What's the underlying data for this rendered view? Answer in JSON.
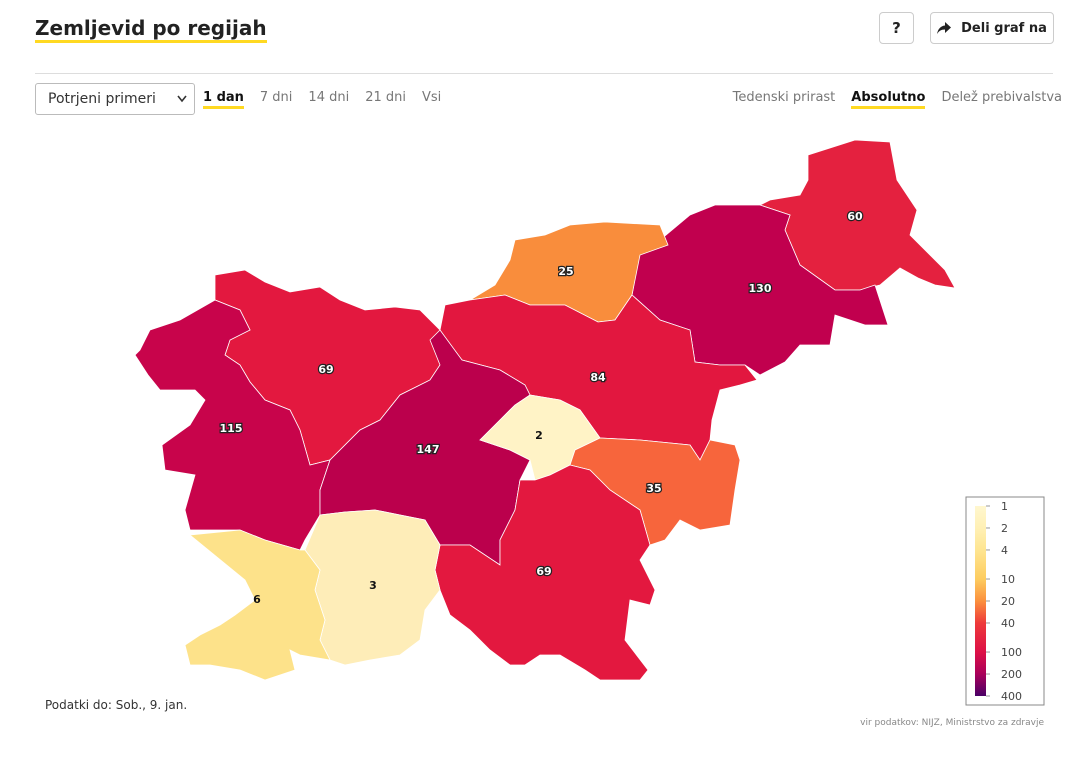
{
  "header": {
    "title": "Zemljevid po regijah",
    "help": "?",
    "share": "Deli graf na"
  },
  "controls": {
    "measure": "Potrjeni primeri",
    "periods": [
      "1 dan",
      "7 dni",
      "14 dni",
      "21 dni",
      "Vsi"
    ],
    "active_period": 0,
    "modes": [
      "Tedenski prirast",
      "Absolutno",
      "Delež prebivalstva"
    ],
    "active_mode": 1
  },
  "map": {
    "regions": [
      {
        "value": 60,
        "color": "#e4213f"
      },
      {
        "value": 130,
        "color": "#c1004e"
      },
      {
        "value": 25,
        "color": "#f98d3c"
      },
      {
        "value": 84,
        "color": "#e2173f"
      },
      {
        "value": 69,
        "color": "#e3183f"
      },
      {
        "value": 115,
        "color": "#c8044b"
      },
      {
        "value": 147,
        "color": "#bb004c"
      },
      {
        "value": 2,
        "color": "#fff3c6"
      },
      {
        "value": 35,
        "color": "#f7653c"
      },
      {
        "value": 69,
        "color": "#e3183f"
      },
      {
        "value": 3,
        "color": "#feedb8"
      },
      {
        "value": 6,
        "color": "#fde28a"
      }
    ],
    "log_scale": true,
    "legend": {
      "ticks": [
        1,
        2,
        4,
        10,
        20,
        40,
        100,
        200,
        400
      ],
      "colors": [
        "#fff7cf",
        "#fff0b5",
        "#fee591",
        "#fdcc5f",
        "#fb903d",
        "#ee3a3a",
        "#dd1046",
        "#a9005a",
        "#4a0066"
      ]
    }
  },
  "footer": {
    "updated": "Podatki do: Sob., 9. jan.",
    "source": "vir podatkov: NIJZ, Ministrstvo za zdravje"
  }
}
